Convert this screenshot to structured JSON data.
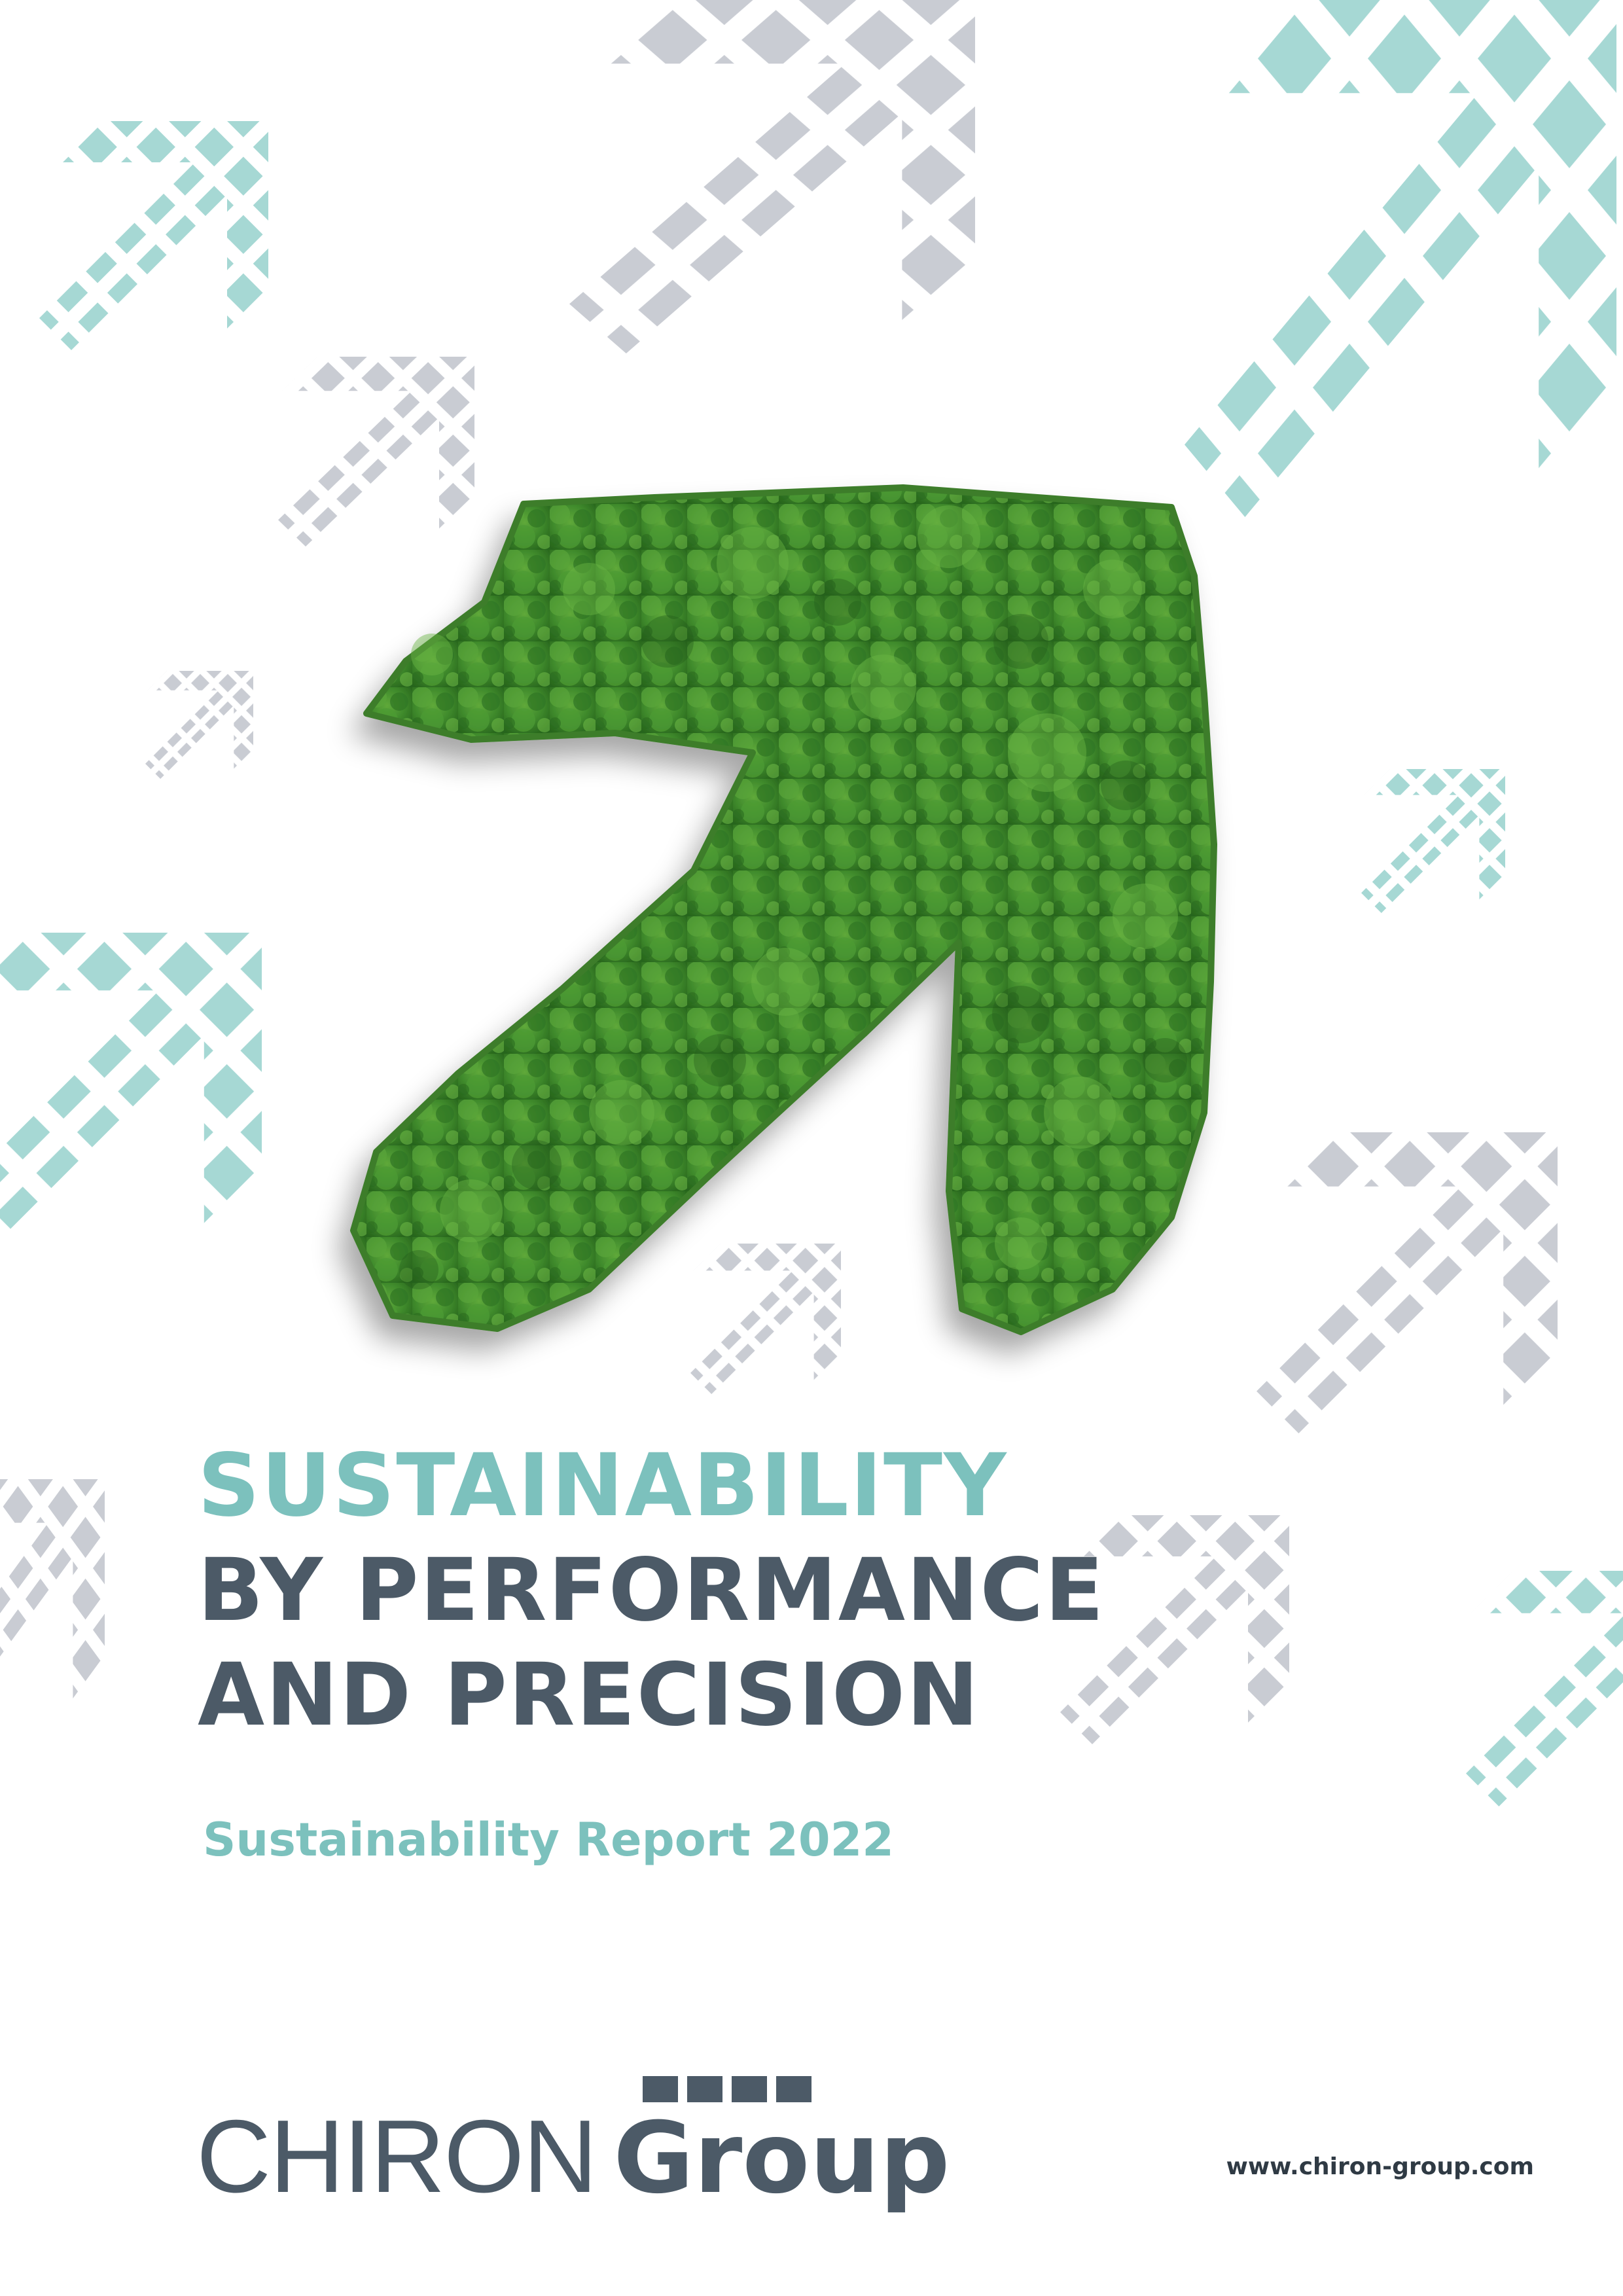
{
  "cover": {
    "title_line1": "SUSTAINABILITY",
    "title_line2": "BY PERFORMANCE",
    "title_line3": "AND PRECISION",
    "subtitle": "Sustainability Report 2022"
  },
  "logo": {
    "word_light": "CHIRON",
    "word_bold": "Group"
  },
  "footer": {
    "website": "www.chiron-group.com"
  },
  "colors": {
    "accent": "#7cc1bd",
    "dark": "#4c5a67",
    "arrow_grey": "#c9ccd3",
    "arrow_teal": "#a6d8d4",
    "foliage": "#3f8a2c"
  },
  "icons": {
    "hero": "tree-arrow-icon",
    "background": "dotted-arrow-icon"
  }
}
